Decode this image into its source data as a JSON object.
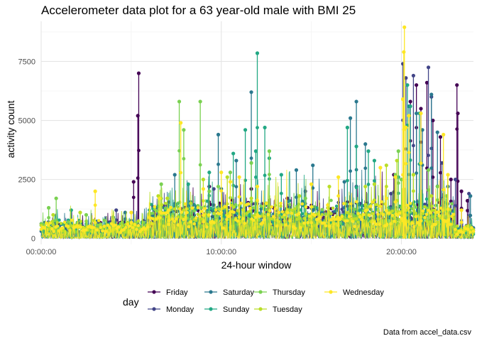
{
  "chart_data": {
    "type": "line",
    "title": "Accelerometer data plot for a 63 year-old male with BMI 25",
    "xlabel": "24-hour window",
    "ylabel": "activity count",
    "caption": "Data from accel_data.csv",
    "x_unit": "minute of day",
    "xlim": [
      0,
      1440
    ],
    "ylim": [
      -250,
      9200
    ],
    "x_ticks": [
      {
        "value": 0,
        "label": "00:00:00"
      },
      {
        "value": 600,
        "label": "10:00:00"
      },
      {
        "value": 1200,
        "label": "20:00:00"
      }
    ],
    "y_ticks": [
      {
        "value": 0,
        "label": "0"
      },
      {
        "value": 2500,
        "label": "2500"
      },
      {
        "value": 5000,
        "label": "5000"
      },
      {
        "value": 7500,
        "label": "7500"
      }
    ],
    "grid": true,
    "legend": {
      "title": "day",
      "position": "bottom"
    },
    "series": [
      {
        "name": "Friday",
        "color": "#440154",
        "peaks": [
          [
            325,
            7000
          ],
          [
            322,
            5200
          ],
          [
            308,
            2400
          ],
          [
            560,
            2200
          ],
          [
            700,
            2100
          ],
          [
            820,
            1700
          ],
          [
            1175,
            2700
          ],
          [
            1230,
            5800
          ],
          [
            1250,
            6500
          ],
          [
            1265,
            5500
          ],
          [
            1285,
            6600
          ],
          [
            1305,
            5000
          ],
          [
            1330,
            4300
          ],
          [
            1365,
            2500
          ],
          [
            1385,
            6500
          ],
          [
            1388,
            5300
          ],
          [
            1400,
            2000
          ],
          [
            1420,
            1600
          ]
        ]
      },
      {
        "name": "Monday",
        "color": "#414487",
        "peaks": [
          [
            250,
            1200
          ],
          [
            420,
            1400
          ],
          [
            510,
            1200
          ],
          [
            575,
            2100
          ],
          [
            880,
            2000
          ],
          [
            1050,
            2200
          ],
          [
            1165,
            1900
          ],
          [
            1205,
            7400
          ],
          [
            1215,
            6800
          ],
          [
            1240,
            6900
          ],
          [
            1290,
            7250
          ],
          [
            1300,
            6000
          ],
          [
            1335,
            3200
          ],
          [
            1380,
            2500
          ],
          [
            1425,
            1900
          ]
        ]
      },
      {
        "name": "Saturday",
        "color": "#2A788E",
        "peaks": [
          [
            280,
            1100
          ],
          [
            445,
            2700
          ],
          [
            600,
            2100
          ],
          [
            590,
            4400
          ],
          [
            650,
            3300
          ],
          [
            700,
            6200
          ],
          [
            850,
            2900
          ],
          [
            905,
            3100
          ],
          [
            1010,
            2400
          ],
          [
            1030,
            5100
          ],
          [
            1050,
            5800
          ],
          [
            1080,
            4000
          ],
          [
            1225,
            5600
          ],
          [
            1250,
            5300
          ],
          [
            1270,
            4600
          ],
          [
            1300,
            6100
          ],
          [
            1320,
            4500
          ],
          [
            1355,
            2200
          ],
          [
            1430,
            1800
          ]
        ]
      },
      {
        "name": "Sunday",
        "color": "#22A884",
        "peaks": [
          [
            100,
            1200
          ],
          [
            240,
            900
          ],
          [
            490,
            2300
          ],
          [
            560,
            2800
          ],
          [
            640,
            3600
          ],
          [
            680,
            4600
          ],
          [
            715,
            3700
          ],
          [
            720,
            7850
          ],
          [
            745,
            4700
          ],
          [
            760,
            3400
          ],
          [
            800,
            2700
          ],
          [
            1020,
            4700
          ],
          [
            1050,
            3900
          ],
          [
            1090,
            3700
          ],
          [
            1110,
            3300
          ],
          [
            1190,
            2600
          ],
          [
            1220,
            6500
          ],
          [
            1230,
            5600
          ],
          [
            1260,
            5300
          ]
        ]
      },
      {
        "name": "Thursday",
        "color": "#7AD151",
        "peaks": [
          [
            25,
            1300
          ],
          [
            50,
            1700
          ],
          [
            150,
            1000
          ],
          [
            400,
            2300
          ],
          [
            460,
            5800
          ],
          [
            475,
            4600
          ],
          [
            530,
            5800
          ],
          [
            560,
            2000
          ],
          [
            590,
            2200
          ],
          [
            630,
            2800
          ],
          [
            700,
            3200
          ],
          [
            760,
            3700
          ],
          [
            880,
            1700
          ],
          [
            1180,
            2700
          ],
          [
            1190,
            3700
          ],
          [
            1200,
            2500
          ],
          [
            1290,
            2900
          ],
          [
            1320,
            2200
          ],
          [
            1350,
            1800
          ]
        ]
      },
      {
        "name": "Tuesday",
        "color": "#BADE28",
        "peaks": [
          [
            40,
            1000
          ],
          [
            130,
            1100
          ],
          [
            390,
            1800
          ],
          [
            420,
            1700
          ],
          [
            540,
            2500
          ],
          [
            620,
            2600
          ],
          [
            700,
            1700
          ],
          [
            860,
            1800
          ],
          [
            960,
            2200
          ],
          [
            1080,
            2200
          ],
          [
            1110,
            2300
          ],
          [
            1150,
            3100
          ],
          [
            1185,
            3300
          ],
          [
            1240,
            2700
          ],
          [
            1300,
            1800
          ]
        ]
      },
      {
        "name": "Wednesday",
        "color": "#FDE725",
        "peaks": [
          [
            180,
            2000
          ],
          [
            300,
            1100
          ],
          [
            395,
            1700
          ],
          [
            425,
            1200
          ],
          [
            465,
            4900
          ],
          [
            540,
            2100
          ],
          [
            600,
            2800
          ],
          [
            630,
            2400
          ],
          [
            660,
            2600
          ],
          [
            720,
            2200
          ],
          [
            900,
            2300
          ],
          [
            990,
            2600
          ],
          [
            1130,
            3000
          ],
          [
            1150,
            1700
          ],
          [
            1180,
            2600
          ],
          [
            1210,
            8950
          ],
          [
            1208,
            7900
          ],
          [
            1205,
            5900
          ],
          [
            1215,
            4700
          ],
          [
            1225,
            5200
          ],
          [
            1265,
            5300
          ],
          [
            1340,
            4400
          ],
          [
            1355,
            2700
          ],
          [
            1400,
            1200
          ]
        ]
      }
    ]
  }
}
